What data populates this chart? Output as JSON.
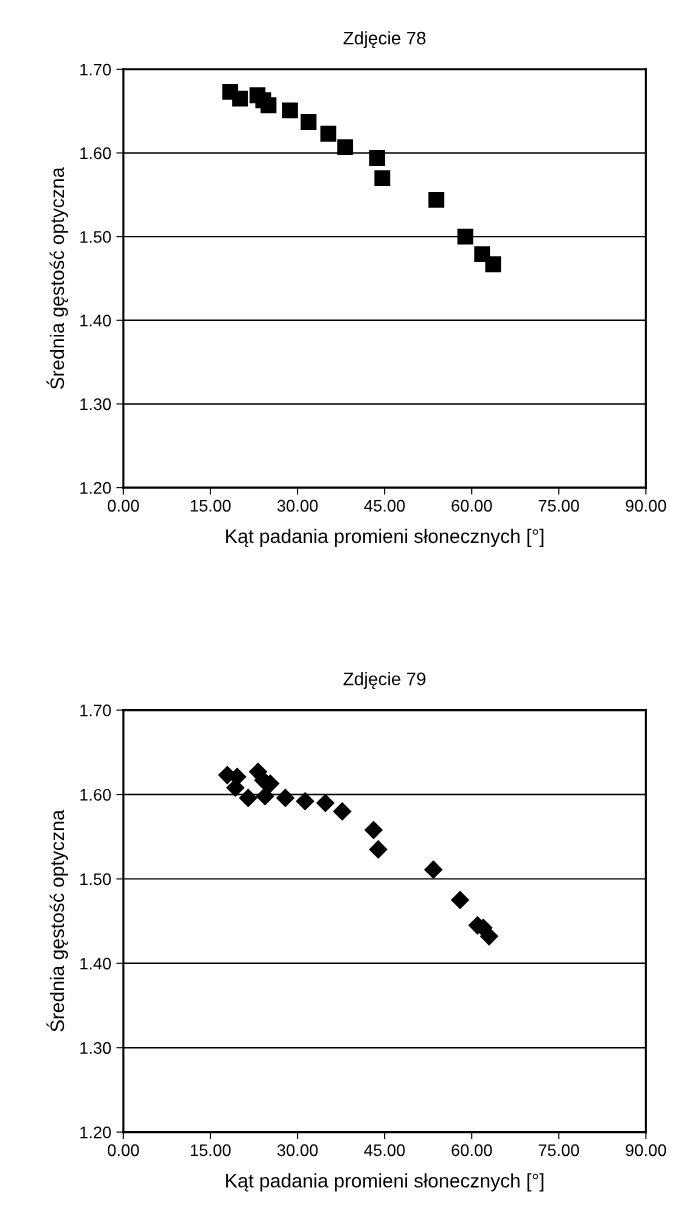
{
  "chart_data": [
    {
      "type": "scatter",
      "title": "Zdjęcie 78",
      "xlabel": "Kąt padania promieni słonecznych [°]",
      "ylabel": "Średnia gęstość optyczna",
      "marker": "square",
      "grid": "y",
      "xlim": [
        0,
        90
      ],
      "xticks": [
        {
          "value": 0,
          "label": "0.00"
        },
        {
          "value": 15,
          "label": "15.00"
        },
        {
          "value": 30,
          "label": "30.00"
        },
        {
          "value": 45,
          "label": "45.00"
        },
        {
          "value": 60,
          "label": "60.00"
        },
        {
          "value": 75,
          "label": "75.00"
        },
        {
          "value": 90,
          "label": "90.00"
        }
      ],
      "ylim": [
        1.2,
        1.7
      ],
      "yticks": [
        {
          "value": 1.2,
          "label": "1.20"
        },
        {
          "value": 1.3,
          "label": "1.30"
        },
        {
          "value": 1.4,
          "label": "1.40"
        },
        {
          "value": 1.5,
          "label": "1.50"
        },
        {
          "value": 1.6,
          "label": "1.60"
        },
        {
          "value": 1.7,
          "label": "1.70"
        }
      ],
      "series": [
        {
          "color": "#000000",
          "x": [
            18.4,
            20.1,
            23.1,
            24.1,
            25,
            28.7,
            31.9,
            35.3,
            38.2,
            43.7,
            44.6,
            53.9,
            58.9,
            61.8,
            63.7
          ],
          "values": [
            1.673,
            1.665,
            1.669,
            1.663,
            1.657,
            1.651,
            1.637,
            1.623,
            1.607,
            1.594,
            1.57,
            1.544,
            1.5,
            1.479,
            1.467
          ]
        }
      ]
    },
    {
      "type": "scatter",
      "title": "Zdjęcie 79",
      "xlabel": "Kąt padania promieni słonecznych [°]",
      "ylabel": "Średnia gęstość optyczna",
      "marker": "diamond",
      "grid": "y",
      "xlim": [
        0,
        90
      ],
      "xticks": [
        {
          "value": 0,
          "label": "0.00"
        },
        {
          "value": 15,
          "label": "15.00"
        },
        {
          "value": 30,
          "label": "30.00"
        },
        {
          "value": 45,
          "label": "45.00"
        },
        {
          "value": 60,
          "label": "60.00"
        },
        {
          "value": 75,
          "label": "75.00"
        },
        {
          "value": 90,
          "label": "90.00"
        }
      ],
      "ylim": [
        1.2,
        1.7
      ],
      "yticks": [
        {
          "value": 1.2,
          "label": "1.20"
        },
        {
          "value": 1.3,
          "label": "1.30"
        },
        {
          "value": 1.4,
          "label": "1.40"
        },
        {
          "value": 1.5,
          "label": "1.50"
        },
        {
          "value": 1.6,
          "label": "1.60"
        },
        {
          "value": 1.7,
          "label": "1.70"
        }
      ],
      "series": [
        {
          "color": "#000000",
          "x": [
            17.9,
            19.6,
            19.3,
            21.5,
            23.2,
            24.1,
            24.4,
            25.3,
            27.9,
            31.3,
            34.8,
            37.7,
            43.1,
            43.9,
            53.4,
            58,
            61,
            62,
            63
          ],
          "values": [
            1.623,
            1.621,
            1.608,
            1.596,
            1.627,
            1.617,
            1.598,
            1.613,
            1.596,
            1.592,
            1.59,
            1.58,
            1.558,
            1.535,
            1.511,
            1.475,
            1.445,
            1.442,
            1.432
          ]
        }
      ]
    }
  ]
}
